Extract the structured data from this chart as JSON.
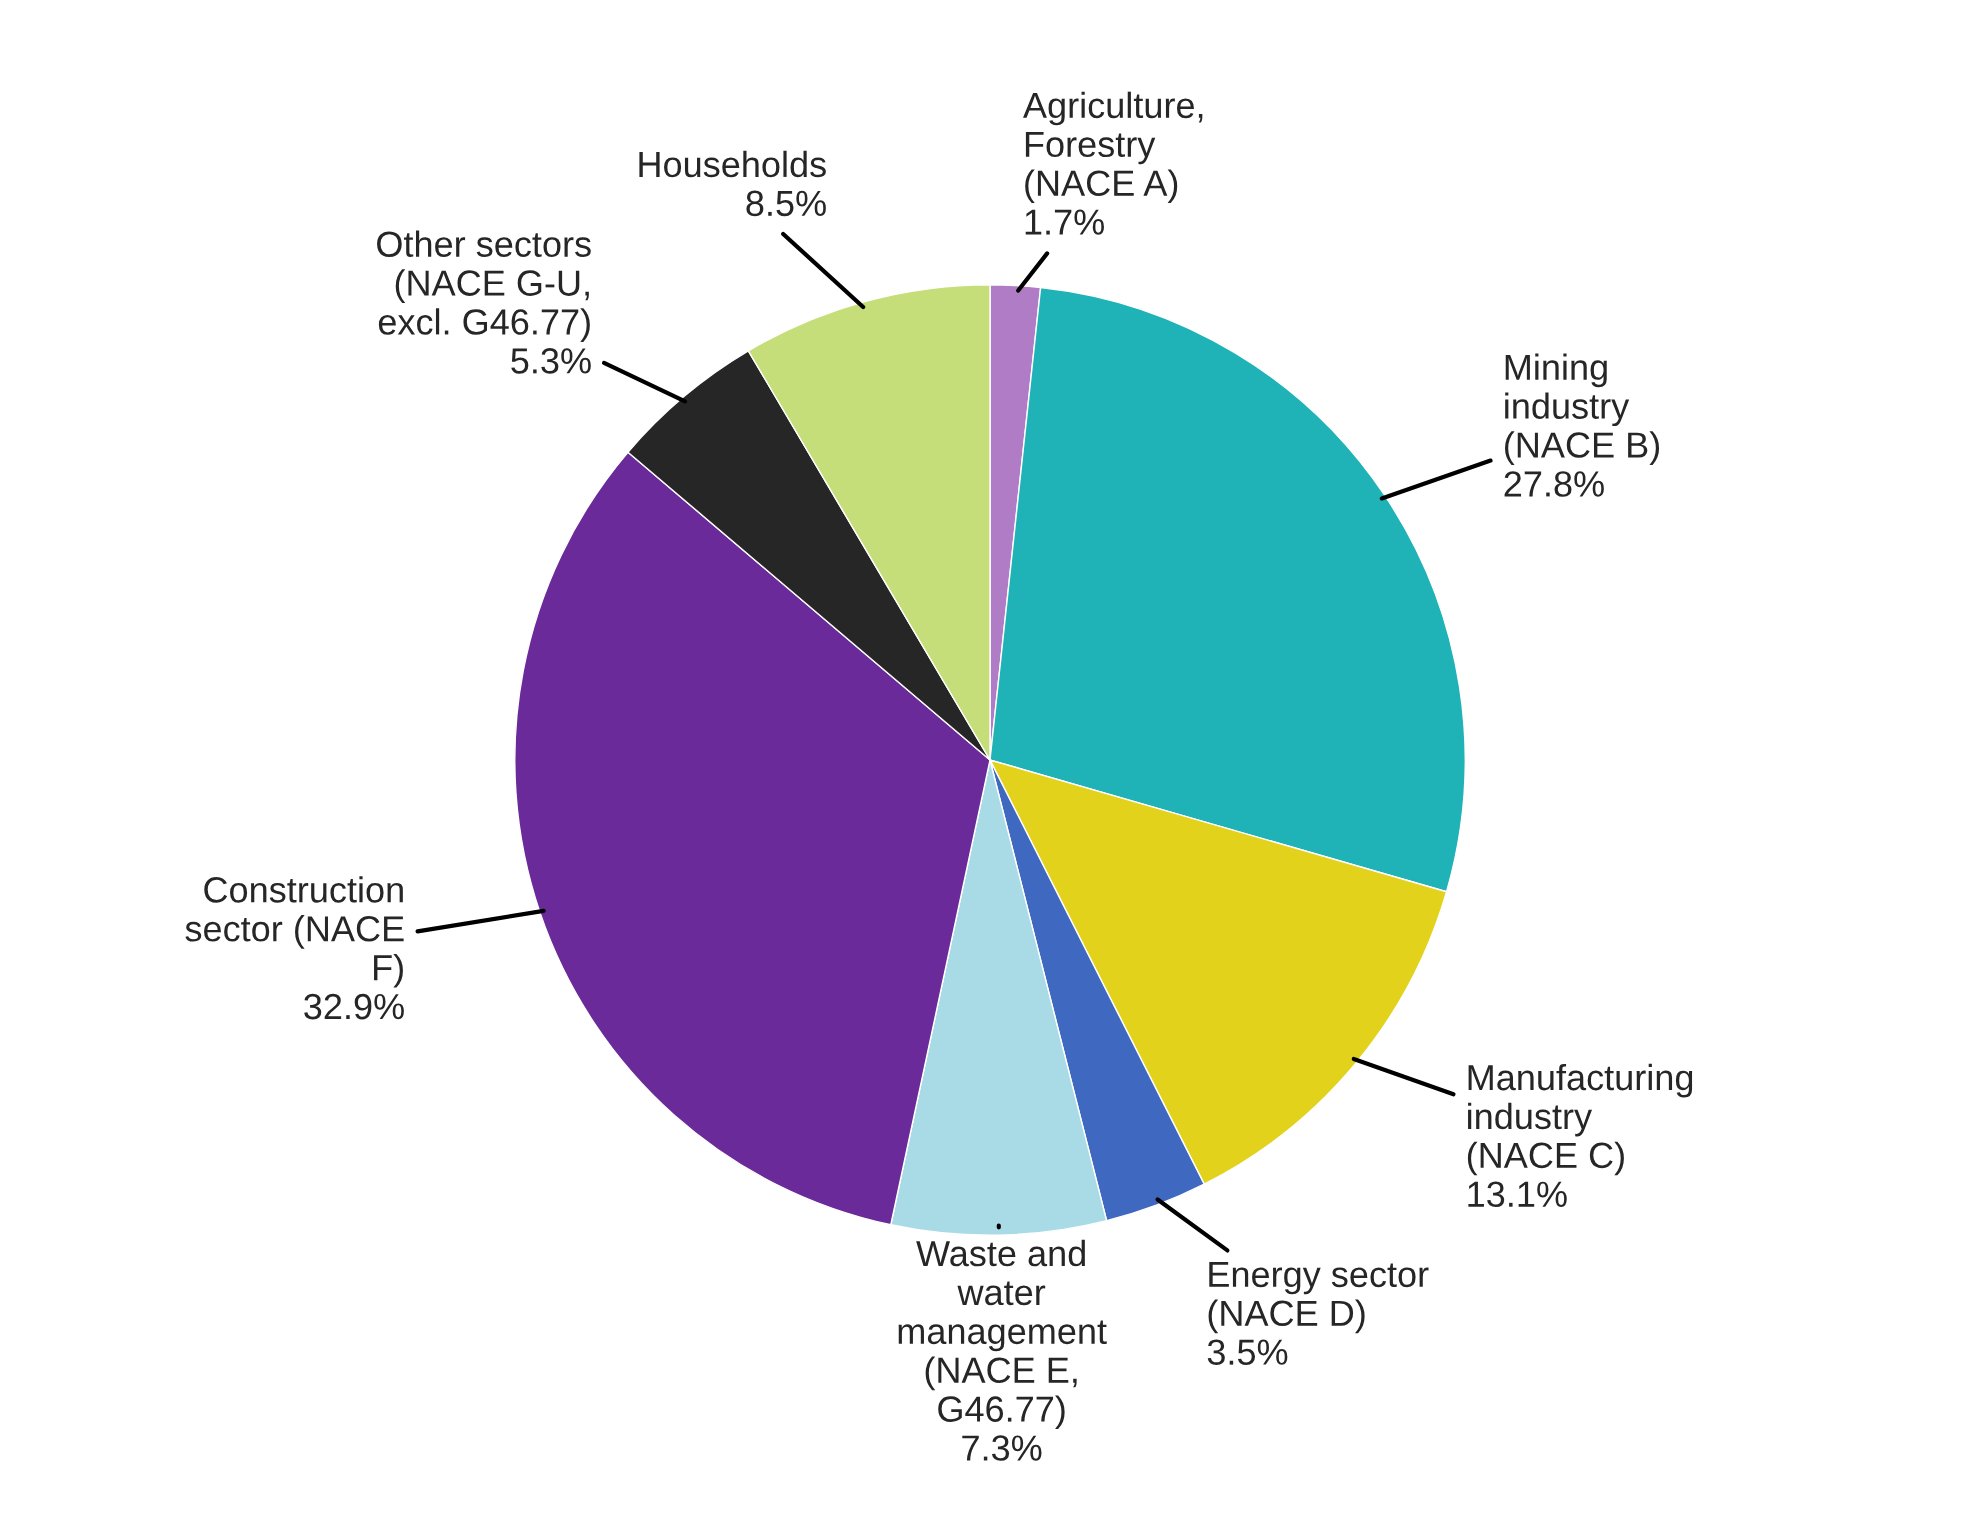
{
  "chart_data": {
    "type": "pie",
    "categories": [
      "Agriculture,\nForestry\n(NACE A)",
      "Mining\nindustry\n(NACE B)",
      "Manufacturing\nindustry\n(NACE C)",
      "Energy sector\n(NACE D)",
      "Waste and\nwater\nmanagement\n(NACE E,\nG46.77)",
      "Construction\nsector (NACE\nF)",
      "Other sectors\n(NACE G-U,\nexcl. G46.77)",
      "Households"
    ],
    "values": [
      1.7,
      27.8,
      13.1,
      3.5,
      7.3,
      32.9,
      5.3,
      8.5
    ],
    "value_labels": [
      "1.7%",
      "27.8%",
      "13.1%",
      "3.5%",
      "7.3%",
      "32.9%",
      "5.3%",
      "8.5%"
    ],
    "colors": [
      "#b07cc6",
      "#1fb3b8",
      "#e3d21c",
      "#3f68c1",
      "#a9dbe6",
      "#6a2a9a",
      "#262626",
      "#c5de7a"
    ],
    "legend": false
  }
}
